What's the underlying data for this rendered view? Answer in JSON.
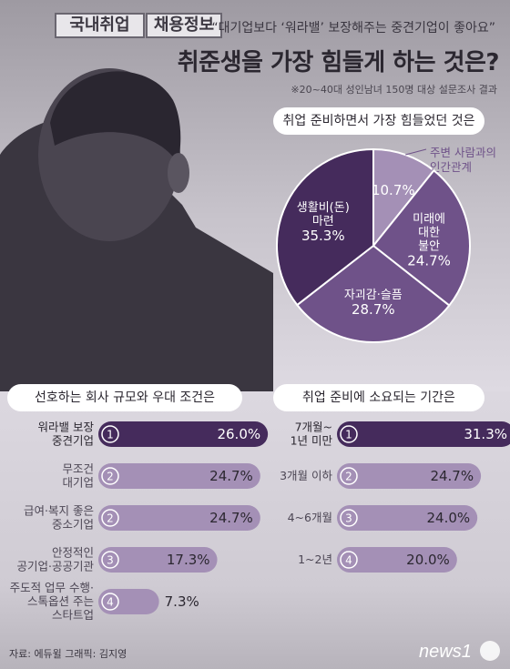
{
  "header": {
    "subtitle": "“대기업보다 ‘워라밸’ 보장해주는 중견기업이 좋아요”",
    "title": "취준생을 가장 힘들게 하는 것은?",
    "note": "※20~40대 성인남녀 150명 대상 설문조사 결과"
  },
  "background": {
    "sign_left": "국내취업",
    "sign_right": "채용정보"
  },
  "colors": {
    "dark": "#452b5c",
    "medium": "#6f5289",
    "light": "#a490b6",
    "pill": "#ffffff"
  },
  "chart_data": [
    {
      "type": "pie",
      "title": "취업 준비하면서 가장 힘들었던 것은",
      "slices": [
        {
          "label_lines": [
            "주변 사람과의",
            "인간관계"
          ],
          "value": 10.7,
          "value_text": "10.7%"
        },
        {
          "label_lines": [
            "미래에",
            "대한",
            "불안"
          ],
          "value": 24.7,
          "value_text": "24.7%"
        },
        {
          "label_lines": [
            "자괴감·슬픔"
          ],
          "value": 28.7,
          "value_text": "28.7%"
        },
        {
          "label_lines": [
            "생활비(돈)",
            "마련"
          ],
          "value": 35.3,
          "value_text": "35.3%"
        }
      ]
    },
    {
      "type": "bar",
      "title": "선호하는 회사 규모와 우대 조건은",
      "categories": [
        [
          "워라밸 보장",
          "중견기업"
        ],
        [
          "무조건",
          "대기업"
        ],
        [
          "급여·복지 좋은",
          "중소기업"
        ],
        [
          "안정적인",
          "공기업·공공기관"
        ],
        [
          "주도적 업무 수행·",
          "스톡옵션 주는",
          "스타트업"
        ]
      ],
      "ranks": [
        "1",
        "2",
        "2",
        "3",
        "4"
      ],
      "values": [
        26.0,
        24.7,
        24.7,
        17.3,
        7.3
      ],
      "value_texts": [
        "26.0%",
        "24.7%",
        "24.7%",
        "17.3%",
        "7.3%"
      ]
    },
    {
      "type": "bar",
      "title": "취업 준비에 소요되는 기간은",
      "categories": [
        [
          "7개월~",
          "1년 미만"
        ],
        [
          "3개월 이하"
        ],
        [
          "4~6개월"
        ],
        [
          "1~2년"
        ]
      ],
      "ranks": [
        "1",
        "2",
        "3",
        "4"
      ],
      "values": [
        31.3,
        24.7,
        24.0,
        20.0
      ],
      "value_texts": [
        "31.3%",
        "24.7%",
        "24.0%",
        "20.0%"
      ]
    }
  ],
  "footer": {
    "credit": "자료: 에듀윌  그래픽: 김지영",
    "logo": "news1"
  }
}
